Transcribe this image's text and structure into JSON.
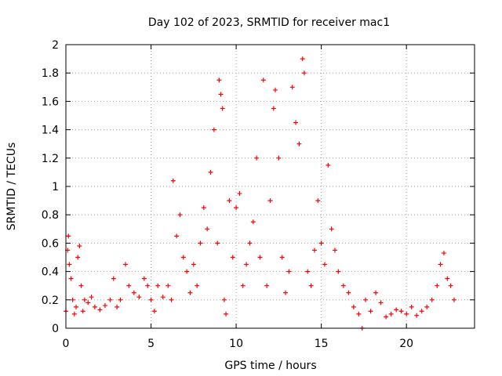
{
  "chart_data": {
    "type": "scatter",
    "title": "Day 102 of 2023, SRMTID for receiver mac1",
    "xlabel": "GPS time / hours",
    "ylabel": "SRMTID / TECUs",
    "xlim": [
      0,
      24
    ],
    "ylim": [
      0,
      2
    ],
    "xticks": [
      "0",
      "5",
      "10",
      "15",
      "20"
    ],
    "yticks": [
      "0",
      "0.2",
      "0.4",
      "0.6",
      "0.8",
      "1",
      "1.2",
      "1.4",
      "1.6",
      "1.8",
      "2"
    ],
    "grid": true,
    "marker": "+",
    "color": "#ff0000",
    "series": [
      {
        "name": "SRMTID",
        "points": [
          [
            0.0,
            0.12
          ],
          [
            0.1,
            0.55
          ],
          [
            0.15,
            0.65
          ],
          [
            0.2,
            0.45
          ],
          [
            0.3,
            0.35
          ],
          [
            0.4,
            0.2
          ],
          [
            0.5,
            0.1
          ],
          [
            0.6,
            0.15
          ],
          [
            0.7,
            0.5
          ],
          [
            0.8,
            0.58
          ],
          [
            0.9,
            0.3
          ],
          [
            1.0,
            0.12
          ],
          [
            1.1,
            0.2
          ],
          [
            1.3,
            0.18
          ],
          [
            1.5,
            0.22
          ],
          [
            1.7,
            0.15
          ],
          [
            2.0,
            0.13
          ],
          [
            2.3,
            0.16
          ],
          [
            2.6,
            0.2
          ],
          [
            2.8,
            0.35
          ],
          [
            3.0,
            0.15
          ],
          [
            3.2,
            0.2
          ],
          [
            3.5,
            0.45
          ],
          [
            3.7,
            0.3
          ],
          [
            4.0,
            0.25
          ],
          [
            4.3,
            0.22
          ],
          [
            4.6,
            0.35
          ],
          [
            4.8,
            0.3
          ],
          [
            5.0,
            0.2
          ],
          [
            5.2,
            0.12
          ],
          [
            5.4,
            0.3
          ],
          [
            5.7,
            0.22
          ],
          [
            6.0,
            0.3
          ],
          [
            6.2,
            0.2
          ],
          [
            6.3,
            1.04
          ],
          [
            6.5,
            0.65
          ],
          [
            6.7,
            0.8
          ],
          [
            6.9,
            0.5
          ],
          [
            7.1,
            0.4
          ],
          [
            7.3,
            0.25
          ],
          [
            7.5,
            0.45
          ],
          [
            7.7,
            0.3
          ],
          [
            7.9,
            0.6
          ],
          [
            8.1,
            0.85
          ],
          [
            8.3,
            0.7
          ],
          [
            8.5,
            1.1
          ],
          [
            8.7,
            1.4
          ],
          [
            8.9,
            0.6
          ],
          [
            9.0,
            1.75
          ],
          [
            9.1,
            1.65
          ],
          [
            9.2,
            1.55
          ],
          [
            9.3,
            0.2
          ],
          [
            9.4,
            0.1
          ],
          [
            9.6,
            0.9
          ],
          [
            9.8,
            0.5
          ],
          [
            10.0,
            0.85
          ],
          [
            10.2,
            0.95
          ],
          [
            10.4,
            0.3
          ],
          [
            10.6,
            0.45
          ],
          [
            10.8,
            0.6
          ],
          [
            11.0,
            0.75
          ],
          [
            11.2,
            1.2
          ],
          [
            11.4,
            0.5
          ],
          [
            11.6,
            1.75
          ],
          [
            11.8,
            0.3
          ],
          [
            12.0,
            0.9
          ],
          [
            12.2,
            1.55
          ],
          [
            12.3,
            1.68
          ],
          [
            12.5,
            1.2
          ],
          [
            12.7,
            0.5
          ],
          [
            12.9,
            0.25
          ],
          [
            13.1,
            0.4
          ],
          [
            13.3,
            1.7
          ],
          [
            13.5,
            1.45
          ],
          [
            13.7,
            1.3
          ],
          [
            13.9,
            1.9
          ],
          [
            14.0,
            1.8
          ],
          [
            14.2,
            0.4
          ],
          [
            14.4,
            0.3
          ],
          [
            14.6,
            0.55
          ],
          [
            14.8,
            0.9
          ],
          [
            15.0,
            0.6
          ],
          [
            15.2,
            0.45
          ],
          [
            15.4,
            1.15
          ],
          [
            15.6,
            0.7
          ],
          [
            15.8,
            0.55
          ],
          [
            16.0,
            0.4
          ],
          [
            16.3,
            0.3
          ],
          [
            16.6,
            0.25
          ],
          [
            16.9,
            0.15
          ],
          [
            17.2,
            0.1
          ],
          [
            17.4,
            0.0
          ],
          [
            17.6,
            0.2
          ],
          [
            17.9,
            0.12
          ],
          [
            18.2,
            0.25
          ],
          [
            18.5,
            0.18
          ],
          [
            18.8,
            0.08
          ],
          [
            19.1,
            0.1
          ],
          [
            19.4,
            0.13
          ],
          [
            19.7,
            0.12
          ],
          [
            20.0,
            0.1
          ],
          [
            20.3,
            0.15
          ],
          [
            20.6,
            0.09
          ],
          [
            20.9,
            0.12
          ],
          [
            21.2,
            0.15
          ],
          [
            21.5,
            0.2
          ],
          [
            21.8,
            0.3
          ],
          [
            22.0,
            0.45
          ],
          [
            22.2,
            0.53
          ],
          [
            22.4,
            0.35
          ],
          [
            22.6,
            0.3
          ],
          [
            22.8,
            0.2
          ]
        ]
      }
    ]
  }
}
